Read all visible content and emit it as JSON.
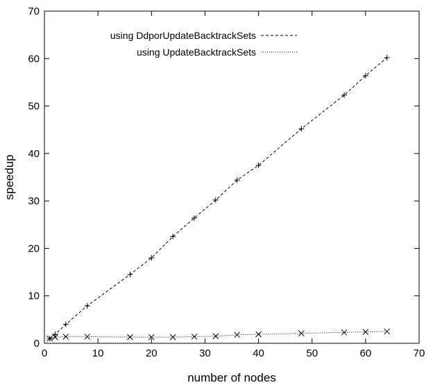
{
  "chart_data": {
    "type": "line",
    "xlabel": "number of nodes",
    "ylabel": "speedup",
    "xlim": [
      0,
      70
    ],
    "ylim": [
      0,
      70
    ],
    "xticks": [
      0,
      10,
      20,
      30,
      40,
      50,
      60,
      70
    ],
    "yticks": [
      0,
      10,
      20,
      30,
      40,
      50,
      60,
      70
    ],
    "grid": false,
    "legend_position": "top-right",
    "series": [
      {
        "name": "using DdporUpdateBacktrackSets",
        "line_style": "dashed",
        "marker": "plus",
        "color": "#000000",
        "x": [
          1,
          2,
          4,
          8,
          16,
          20,
          24,
          28,
          32,
          36,
          40,
          48,
          56,
          60,
          64
        ],
        "y": [
          1.0,
          1.9,
          4.0,
          7.9,
          14.5,
          18.0,
          22.5,
          26.4,
          30.2,
          34.4,
          37.5,
          45.2,
          52.3,
          56.4,
          60.2
        ]
      },
      {
        "name": "using UpdateBacktrackSets",
        "line_style": "dotted",
        "marker": "cross",
        "color": "#000000",
        "x": [
          1,
          2,
          4,
          8,
          16,
          20,
          24,
          28,
          32,
          36,
          40,
          48,
          56,
          60,
          64
        ],
        "y": [
          1.0,
          1.3,
          1.4,
          1.4,
          1.3,
          1.3,
          1.3,
          1.4,
          1.5,
          1.8,
          1.9,
          2.1,
          2.3,
          2.4,
          2.5
        ]
      }
    ]
  }
}
